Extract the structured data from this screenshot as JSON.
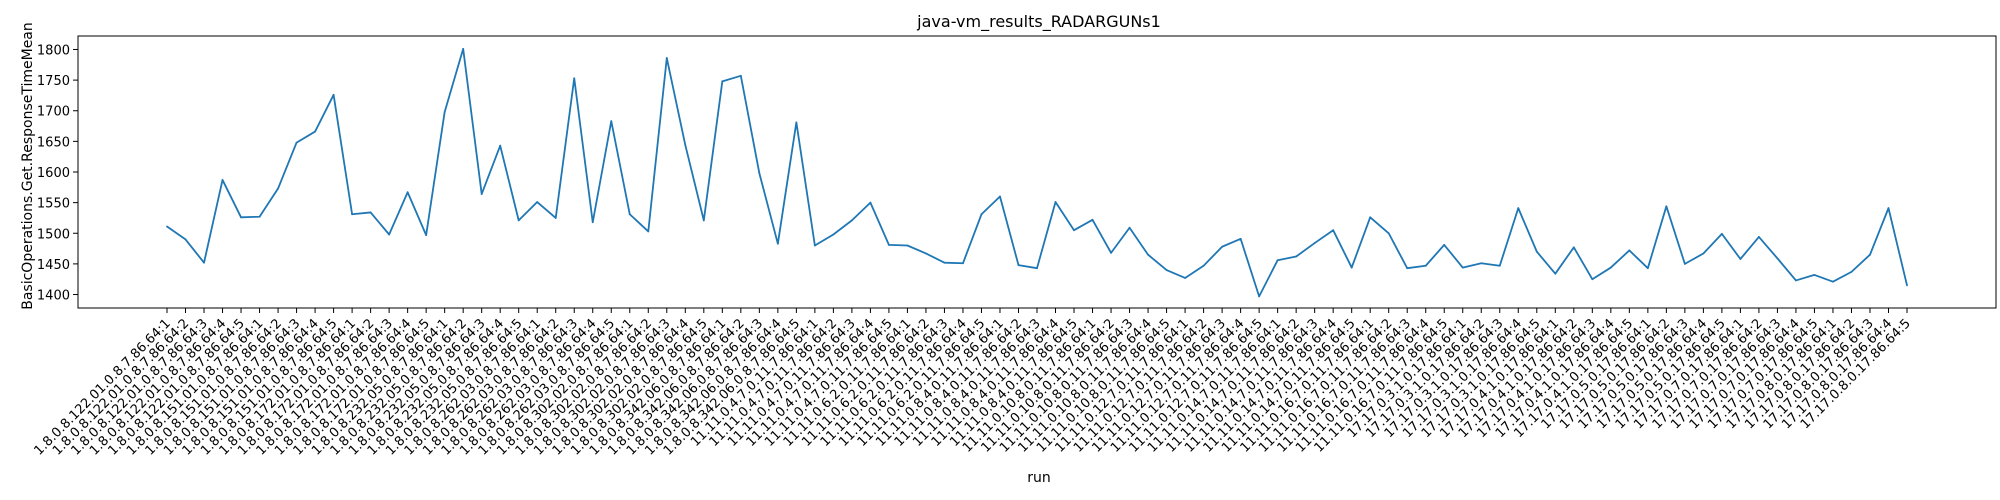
{
  "chart_data": {
    "type": "line",
    "title": "java-vm_results_RADARGUNs1",
    "xlabel": "run",
    "ylabel": "BasicOperations.Get.ResponseTimeMean",
    "ylim": [
      1378,
      1822
    ],
    "yticks": [
      1400,
      1450,
      1500,
      1550,
      1600,
      1650,
      1700,
      1750,
      1800
    ],
    "grid": false,
    "line_color": "#1f77b4",
    "categories": [
      "1.8.0.8.122.01.0.8.7.86.64:1",
      "1.8.0.8.122.01.0.8.7.86.64:2",
      "1.8.0.8.122.01.0.8.7.86.64:3",
      "1.8.0.8.122.01.0.8.7.86.64:4",
      "1.8.0.8.122.01.0.8.7.86.64:5",
      "1.8.0.8.151.01.0.8.7.86.64:1",
      "1.8.0.8.151.01.0.8.7.86.64:2",
      "1.8.0.8.151.01.0.8.7.86.64:3",
      "1.8.0.8.151.01.0.8.7.86.64:4",
      "1.8.0.8.151.01.0.8.7.86.64:5",
      "1.8.0.8.172.01.0.8.7.86.64:1",
      "1.8.0.8.172.01.0.8.7.86.64:2",
      "1.8.0.8.172.01.0.8.7.86.64:3",
      "1.8.0.8.172.01.0.8.7.86.64:4",
      "1.8.0.8.172.01.0.8.7.86.64:5",
      "1.8.0.8.232.05.0.8.7.86.64:1",
      "1.8.0.8.232.05.0.8.7.86.64:2",
      "1.8.0.8.232.05.0.8.7.86.64:3",
      "1.8.0.8.232.05.0.8.7.86.64:4",
      "1.8.0.8.232.05.0.8.7.86.64:5",
      "1.8.0.8.262.03.0.8.7.86.64:1",
      "1.8.0.8.262.03.0.8.7.86.64:2",
      "1.8.0.8.262.03.0.8.7.86.64:3",
      "1.8.0.8.262.03.0.8.7.86.64:4",
      "1.8.0.8.262.03.0.8.7.86.64:5",
      "1.8.0.8.302.02.0.8.7.86.64:1",
      "1.8.0.8.302.02.0.8.7.86.64:2",
      "1.8.0.8.302.02.0.8.7.86.64:3",
      "1.8.0.8.302.02.0.8.7.86.64:4",
      "1.8.0.8.302.02.0.8.7.86.64:5",
      "1.8.0.8.342.06.0.8.7.86.64:1",
      "1.8.0.8.342.06.0.8.7.86.64:2",
      "1.8.0.8.342.06.0.8.7.86.64:3",
      "1.8.0.8.342.06.0.8.7.86.64:4",
      "1.8.0.8.342.06.0.8.7.86.64:5",
      "11.11.0.4.7.0.11.7.86.64:1",
      "11.11.0.4.7.0.11.7.86.64:2",
      "11.11.0.4.7.0.11.7.86.64:3",
      "11.11.0.4.7.0.11.7.86.64:4",
      "11.11.0.4.7.0.11.7.86.64:5",
      "11.11.0.6.2.0.11.7.86.64:1",
      "11.11.0.6.2.0.11.7.86.64:2",
      "11.11.0.6.2.0.11.7.86.64:3",
      "11.11.0.6.2.0.11.7.86.64:4",
      "11.11.0.6.2.0.11.7.86.64:5",
      "11.11.0.8.4.0.11.7.86.64:1",
      "11.11.0.8.4.0.11.7.86.64:2",
      "11.11.0.8.4.0.11.7.86.64:3",
      "11.11.0.8.4.0.11.7.86.64:4",
      "11.11.0.8.4.0.11.7.86.64:5",
      "11.11.0.10.8.0.11.7.86.64:1",
      "11.11.0.10.8.0.11.7.86.64:2",
      "11.11.0.10.8.0.11.7.86.64:3",
      "11.11.0.10.8.0.11.7.86.64:4",
      "11.11.0.10.8.0.11.7.86.64:5",
      "11.11.0.12.7.0.11.7.86.64:1",
      "11.11.0.12.7.0.11.7.86.64:2",
      "11.11.0.12.7.0.11.7.86.64:3",
      "11.11.0.12.7.0.11.7.86.64:4",
      "11.11.0.12.7.0.11.7.86.64:5",
      "11.11.0.14.7.0.11.7.86.64:1",
      "11.11.0.14.7.0.11.7.86.64:2",
      "11.11.0.14.7.0.11.7.86.64:3",
      "11.11.0.14.7.0.11.7.86.64:4",
      "11.11.0.14.7.0.11.7.86.64:5",
      "11.11.0.16.7.0.11.7.86.64:1",
      "11.11.0.16.7.0.11.7.86.64:2",
      "11.11.0.16.7.0.11.7.86.64:3",
      "11.11.0.16.7.0.11.7.86.64:4",
      "11.11.0.16.7.0.11.7.86.64:5",
      "17.17.0.3.1.0.17.86.64:1",
      "17.17.0.3.1.0.17.86.64:2",
      "17.17.0.3.1.0.17.86.64:3",
      "17.17.0.3.1.0.17.86.64:4",
      "17.17.0.3.1.0.17.86.64:5",
      "17.17.0.4.1.0.17.86.64:1",
      "17.17.0.4.1.0.17.86.64:2",
      "17.17.0.4.1.0.17.86.64:3",
      "17.17.0.4.1.0.17.86.64:4",
      "17.17.0.4.1.0.17.86.64:5",
      "17.17.0.5.0.17.86.64:1",
      "17.17.0.5.0.17.86.64:2",
      "17.17.0.5.0.17.86.64:3",
      "17.17.0.5.0.17.86.64:4",
      "17.17.0.5.0.17.86.64:5",
      "17.17.0.7.0.17.86.64:1",
      "17.17.0.7.0.17.86.64:2",
      "17.17.0.7.0.17.86.64:3",
      "17.17.0.7.0.17.86.64:4",
      "17.17.0.7.0.17.86.64:5",
      "17.17.0.8.0.17.86.64:1",
      "17.17.0.8.0.17.86.64:2",
      "17.17.0.8.0.17.86.64:3",
      "17.17.0.8.0.17.86.64:4",
      "17.17.0.8.0.17.86.64:5"
    ],
    "series": [
      {
        "values": [
          1511,
          1490,
          1452,
          1587,
          1526,
          1527,
          1573,
          1648,
          1666,
          1726,
          1531,
          1534,
          1498,
          1567,
          1497,
          1698,
          1801,
          1564,
          1643,
          1521,
          1551,
          1525,
          1753,
          1518,
          1683,
          1531,
          1503,
          1786,
          1644,
          1521,
          1748,
          1757,
          1598,
          1483,
          1681,
          1480,
          1498,
          1521,
          1550,
          1481,
          1480,
          1467,
          1452,
          1451,
          1531,
          1560,
          1448,
          1443,
          1551,
          1505,
          1522,
          1468,
          1509,
          1465,
          1440,
          1427,
          1447,
          1478,
          1491,
          1397,
          1456,
          1462,
          1484,
          1505,
          1444,
          1526,
          1500,
          1443,
          1447,
          1481,
          1444,
          1451,
          1447,
          1541,
          1470,
          1434,
          1477,
          1425,
          1444,
          1472,
          1443,
          1544,
          1450,
          1467,
          1499,
          1458,
          1494,
          1459,
          1423,
          1432,
          1421,
          1437,
          1465,
          1541,
          1415
        ]
      }
    ]
  }
}
